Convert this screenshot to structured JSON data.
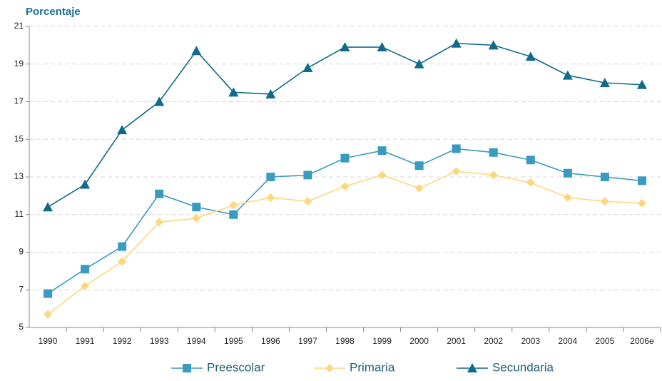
{
  "chart_data": {
    "type": "line",
    "title": "Porcentaje",
    "categories": [
      "1990",
      "1991",
      "1992",
      "1993",
      "1994",
      "1995",
      "1996",
      "1997",
      "1998",
      "1999",
      "2000",
      "2001",
      "2002",
      "2003",
      "2004",
      "2005",
      "2006e"
    ],
    "series": [
      {
        "name": "Preescolar",
        "color": "#3a9bc1",
        "marker": "square",
        "values": [
          6.8,
          8.1,
          9.3,
          12.1,
          11.4,
          11.0,
          13.0,
          13.1,
          14.0,
          14.4,
          13.6,
          14.5,
          14.3,
          13.9,
          13.2,
          13.0,
          12.8
        ]
      },
      {
        "name": "Primaria",
        "color": "#fcd77f",
        "marker": "diamond",
        "values": [
          5.7,
          7.2,
          8.5,
          10.6,
          10.8,
          11.5,
          11.9,
          11.7,
          12.5,
          13.1,
          12.4,
          13.3,
          13.1,
          12.7,
          11.9,
          11.7,
          11.6
        ]
      },
      {
        "name": "Secundaria",
        "color": "#0f6a8c",
        "marker": "triangle",
        "values": [
          11.4,
          12.6,
          15.5,
          17.0,
          19.7,
          17.5,
          17.4,
          18.8,
          19.9,
          19.9,
          19.0,
          20.1,
          20.0,
          19.4,
          18.4,
          18.0,
          17.9
        ]
      }
    ],
    "ylim": [
      5,
      21
    ],
    "yticks": [
      5,
      7,
      9,
      11,
      13,
      15,
      17,
      19,
      21
    ],
    "grid": true,
    "legend": "bottom"
  }
}
